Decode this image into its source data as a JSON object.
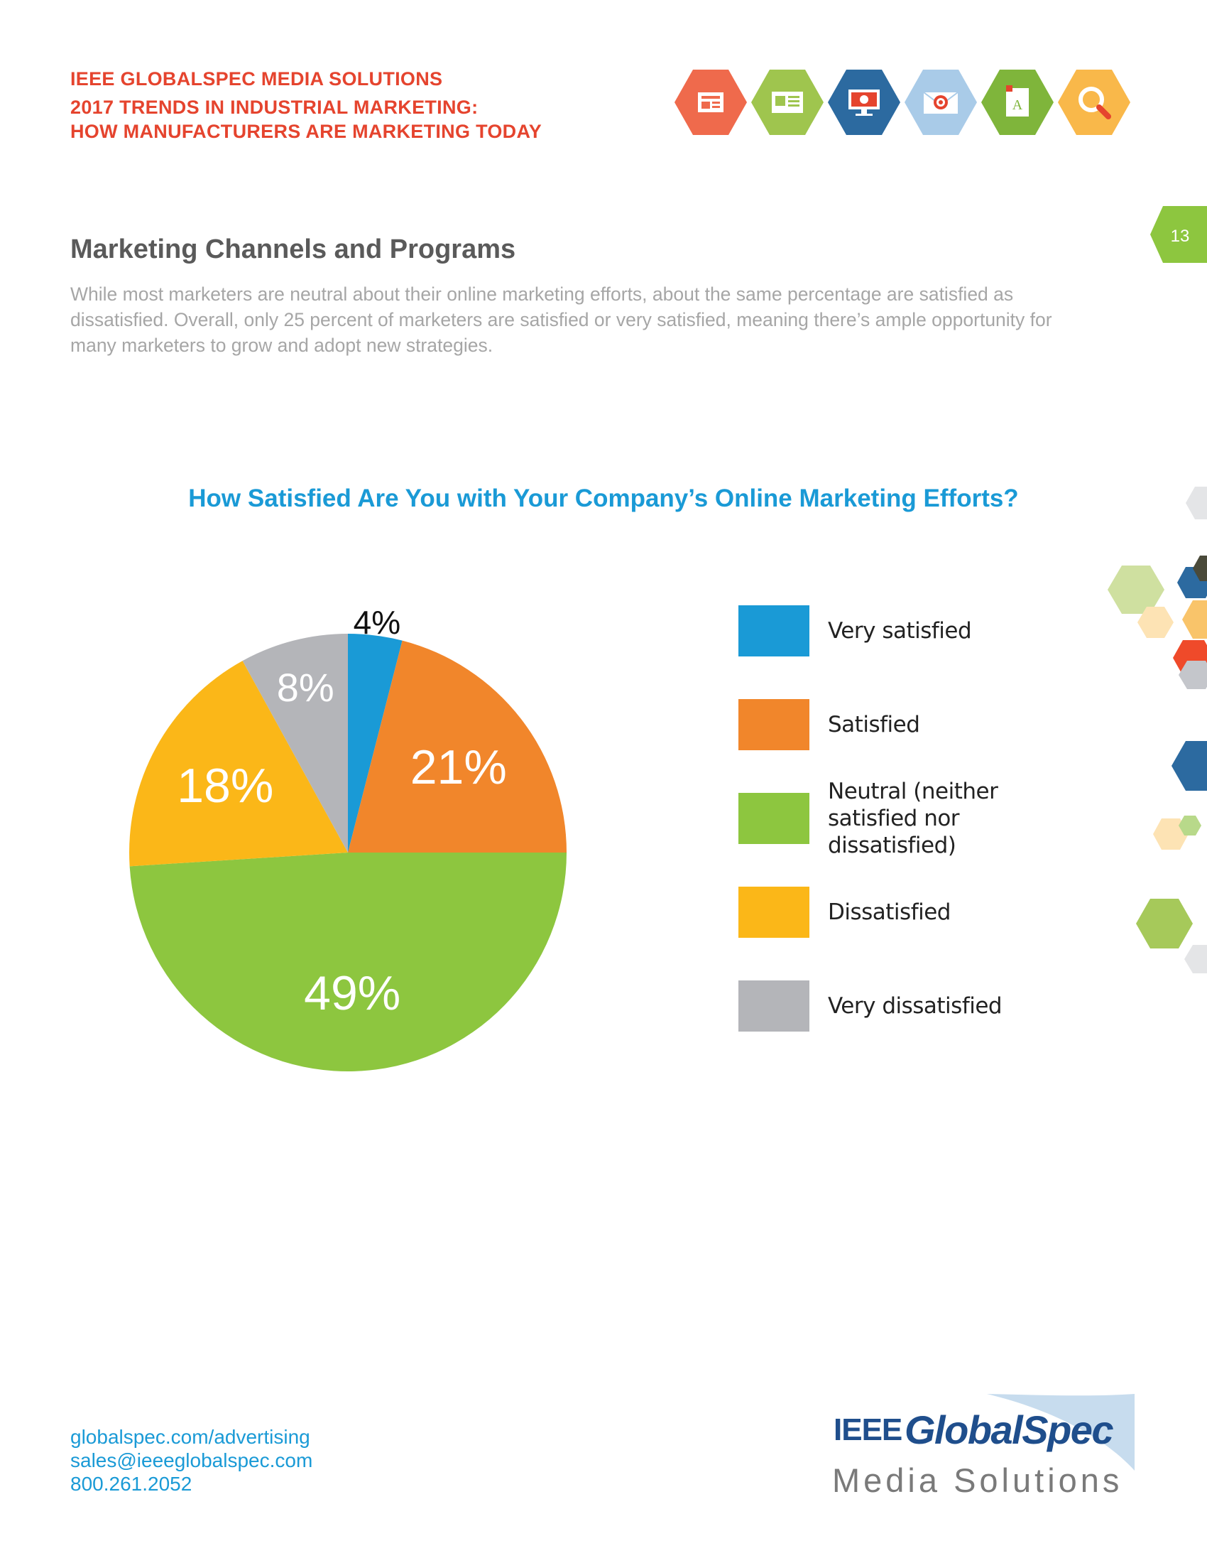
{
  "header": {
    "line1": "IEEE GLOBALSPEC MEDIA SOLUTIONS",
    "line2": "2017 TRENDS IN INDUSTRIAL MARKETING:",
    "line3": "HOW MANUFACTURERS ARE MARKETING TODAY"
  },
  "header_icons": [
    {
      "name": "newsletter-icon",
      "color": "#ef6a4c"
    },
    {
      "name": "web-page-icon",
      "color": "#9fc54e"
    },
    {
      "name": "monitor-icon",
      "color": "#2c6aa0"
    },
    {
      "name": "email-target-icon",
      "color": "#a9cbe8"
    },
    {
      "name": "document-icon",
      "color": "#7fb53b"
    },
    {
      "name": "search-icon",
      "color": "#f9b84a"
    }
  ],
  "page_number": "13",
  "section": {
    "title": "Marketing Channels and Programs",
    "intro": "While most marketers are neutral about their online marketing efforts, about the same percentage are satisfied as dissatisfied. Overall, only 25 percent of marketers are satisfied or very satisfied, meaning there’s ample opportunity for many marketers to grow and adopt new strategies."
  },
  "chart_data": {
    "type": "pie",
    "title": "How Satisfied Are You with Your Company’s Online Marketing Efforts?",
    "slices": [
      {
        "label": "Very satisfied",
        "value": 4,
        "display": "4%",
        "color": "#1a9ad6"
      },
      {
        "label": "Satisfied",
        "value": 21,
        "display": "21%",
        "color": "#f1862b"
      },
      {
        "label": "Neutral (neither satisfied nor dissatisfied)",
        "value": 49,
        "display": "49%",
        "color": "#8dc63f"
      },
      {
        "label": "Dissatisfied",
        "value": 18,
        "display": "18%",
        "color": "#fbb718"
      },
      {
        "label": "Very dissatisfied",
        "value": 8,
        "display": "8%",
        "color": "#b4b5b9"
      }
    ],
    "legend_position": "right"
  },
  "legend_labels": [
    "Very satisfied",
    "Satisfied",
    "Neutral (neither satisfied nor dissatisfied)",
    "Dissatisfied",
    "Very dissatisfied"
  ],
  "footer": {
    "website": "globalspec.com/advertising",
    "email": "sales@ieeeglobalspec.com",
    "phone": "800.261.2052"
  },
  "logo": {
    "ieee": "IEEE",
    "globalspec": "GlobalSpec",
    "media_solutions": "Media Solutions"
  },
  "colors": {
    "header_red": "#e5442e",
    "title_blue": "#1a9ad6",
    "page_tab_green": "#8dc63f"
  }
}
